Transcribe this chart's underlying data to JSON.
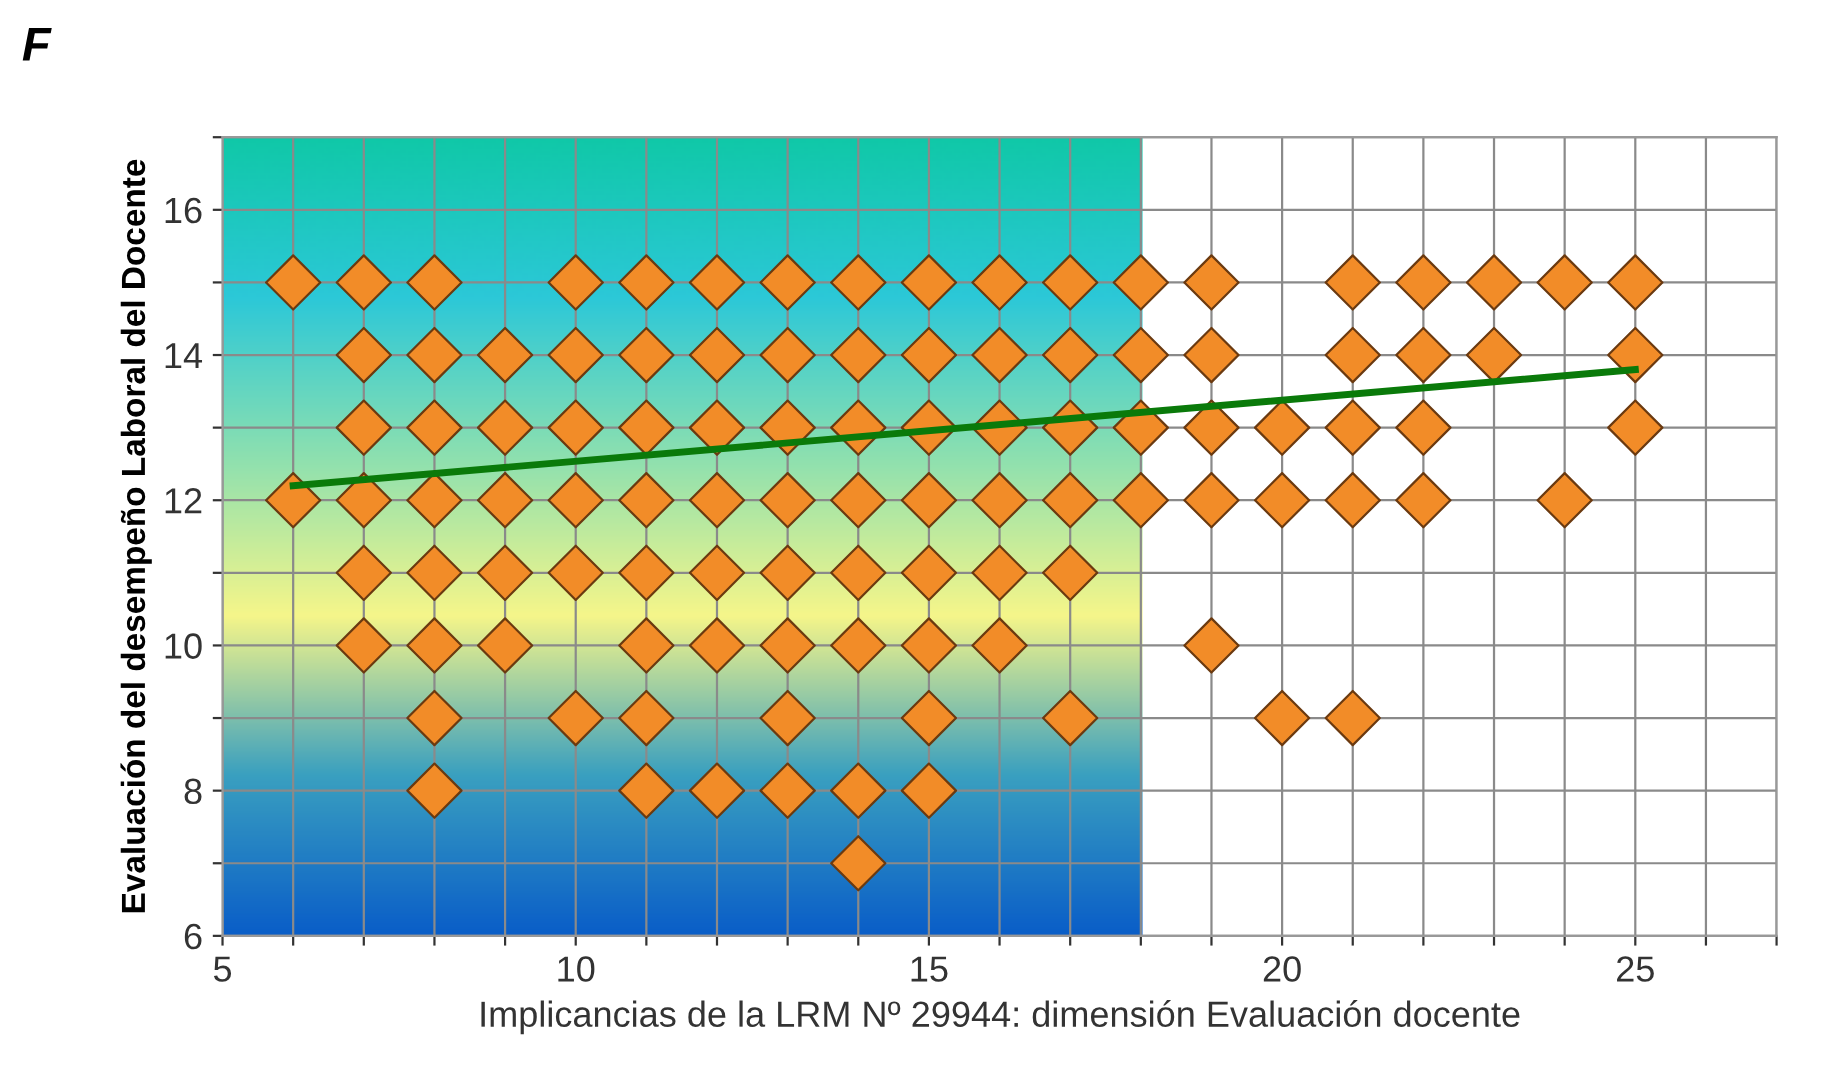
{
  "chart_data": {
    "type": "scatter",
    "xlabel": "Implicancias de la LRM Nº 29944: dimensión Evaluación docente",
    "ylabel": "Evaluación del desempeño Laboral del Docente",
    "annotations": [
      "F"
    ],
    "xlim": [
      5,
      27
    ],
    "ylim": [
      6,
      17
    ],
    "xticks": [
      5,
      {
        "value": 6,
        "label": null
      },
      {
        "value": 7,
        "label": null
      },
      {
        "value": 8,
        "label": null
      },
      {
        "value": 9,
        "label": null
      },
      10,
      {
        "value": 11,
        "label": null
      },
      {
        "value": 12,
        "label": null
      },
      {
        "value": 13,
        "label": null
      },
      {
        "value": 14,
        "label": null
      },
      15,
      {
        "value": 16,
        "label": null
      },
      {
        "value": 17,
        "label": null
      },
      {
        "value": 18,
        "label": null
      },
      {
        "value": 19,
        "label": null
      },
      20,
      {
        "value": 21,
        "label": null
      },
      {
        "value": 22,
        "label": null
      },
      {
        "value": 23,
        "label": null
      },
      {
        "value": 24,
        "label": null
      },
      25,
      {
        "value": 26,
        "label": null
      },
      {
        "value": 27,
        "label": null
      }
    ],
    "yticks": [
      6,
      {
        "value": 7,
        "label": null
      },
      8,
      {
        "value": 9,
        "label": null
      },
      10,
      {
        "value": 11,
        "label": null
      },
      12,
      {
        "value": 13,
        "label": null
      },
      14,
      {
        "value": 15,
        "label": null
      },
      16,
      {
        "value": 17,
        "label": null
      }
    ],
    "grid": true,
    "legend": false,
    "series": [
      {
        "color": "#f28c28",
        "marker": "diamond",
        "x": [
          6,
          7,
          8,
          10,
          11,
          12,
          13,
          14,
          15,
          16,
          17,
          18,
          19,
          21,
          22,
          23,
          24,
          25,
          7,
          8,
          9,
          10,
          11,
          12,
          13,
          14,
          15,
          16,
          17,
          18,
          19,
          21,
          22,
          23,
          25,
          7,
          8,
          9,
          10,
          11,
          12,
          13,
          14,
          15,
          16,
          17,
          18,
          19,
          20,
          21,
          22,
          25,
          6,
          7,
          8,
          9,
          10,
          11,
          12,
          13,
          14,
          15,
          16,
          17,
          18,
          19,
          20,
          21,
          22,
          24,
          7,
          8,
          9,
          10,
          11,
          12,
          13,
          14,
          15,
          16,
          17,
          7,
          8,
          9,
          11,
          12,
          13,
          14,
          15,
          16,
          19,
          8,
          10,
          11,
          13,
          15,
          17,
          20,
          21,
          8,
          11,
          12,
          13,
          14,
          15,
          14
        ],
        "values": [
          15,
          15,
          15,
          15,
          15,
          15,
          15,
          15,
          15,
          15,
          15,
          15,
          15,
          15,
          15,
          15,
          15,
          15,
          14,
          14,
          14,
          14,
          14,
          14,
          14,
          14,
          14,
          14,
          14,
          14,
          14,
          14,
          14,
          14,
          14,
          13,
          13,
          13,
          13,
          13,
          13,
          13,
          13,
          13,
          13,
          13,
          13,
          13,
          13,
          13,
          13,
          13,
          12,
          12,
          12,
          12,
          12,
          12,
          12,
          12,
          12,
          12,
          12,
          12,
          12,
          12,
          12,
          12,
          12,
          12,
          11,
          11,
          11,
          11,
          11,
          11,
          11,
          11,
          11,
          11,
          11,
          10,
          10,
          10,
          10,
          10,
          10,
          10,
          10,
          10,
          10,
          9,
          9,
          9,
          9,
          9,
          9,
          9,
          9,
          8,
          8,
          8,
          8,
          8,
          8,
          7
        ]
      },
      {
        "type": "line",
        "color": "#0a7a0a",
        "line_style": "solid",
        "marker": "none",
        "x": [
          6,
          25
        ],
        "values": [
          12.2,
          13.8
        ]
      }
    ]
  }
}
